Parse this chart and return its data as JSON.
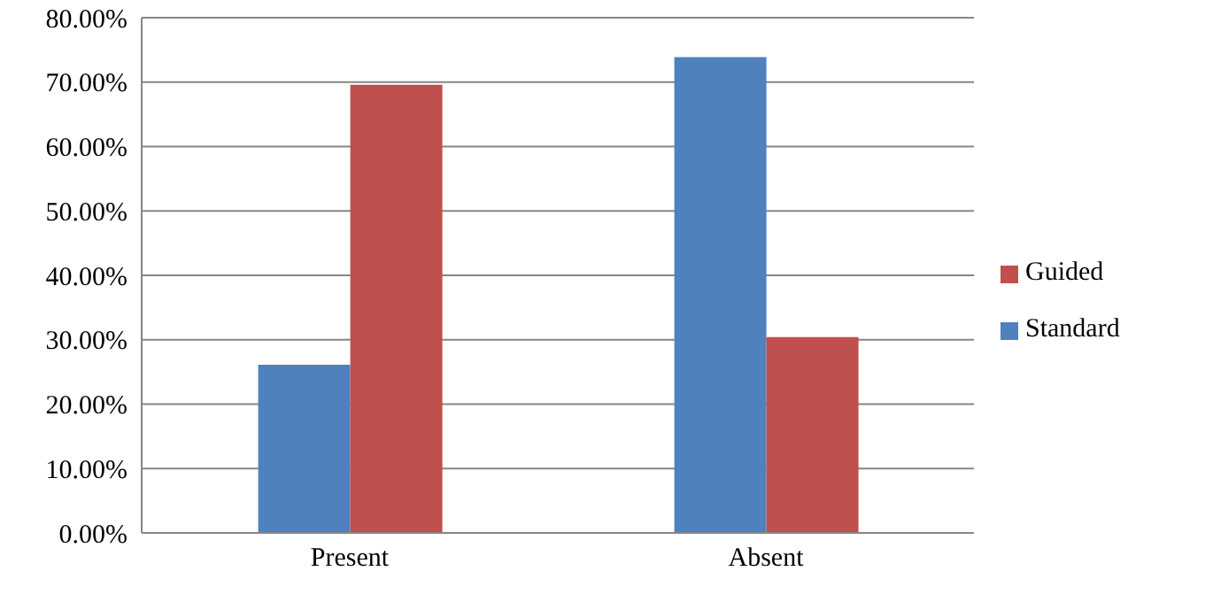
{
  "chart_data": {
    "type": "bar",
    "categories": [
      "Present",
      "Absent"
    ],
    "series": [
      {
        "name": "Standard",
        "color": "#4f81bd",
        "values": [
          26.1,
          73.9
        ]
      },
      {
        "name": "Guided",
        "color": "#c0504d",
        "values": [
          69.6,
          30.4
        ]
      }
    ],
    "ylim": [
      0,
      80
    ],
    "yticks": [
      {
        "value": 0,
        "label": "0.00%"
      },
      {
        "value": 10,
        "label": "10.00%"
      },
      {
        "value": 20,
        "label": "20.00%"
      },
      {
        "value": 30,
        "label": "30.00%"
      },
      {
        "value": 40,
        "label": "40.00%"
      },
      {
        "value": 50,
        "label": "50.00%"
      },
      {
        "value": 60,
        "label": "60.00%"
      },
      {
        "value": 70,
        "label": "70.00%"
      },
      {
        "value": 80,
        "label": "80.00%"
      }
    ],
    "grid": "y",
    "legend": "right"
  }
}
